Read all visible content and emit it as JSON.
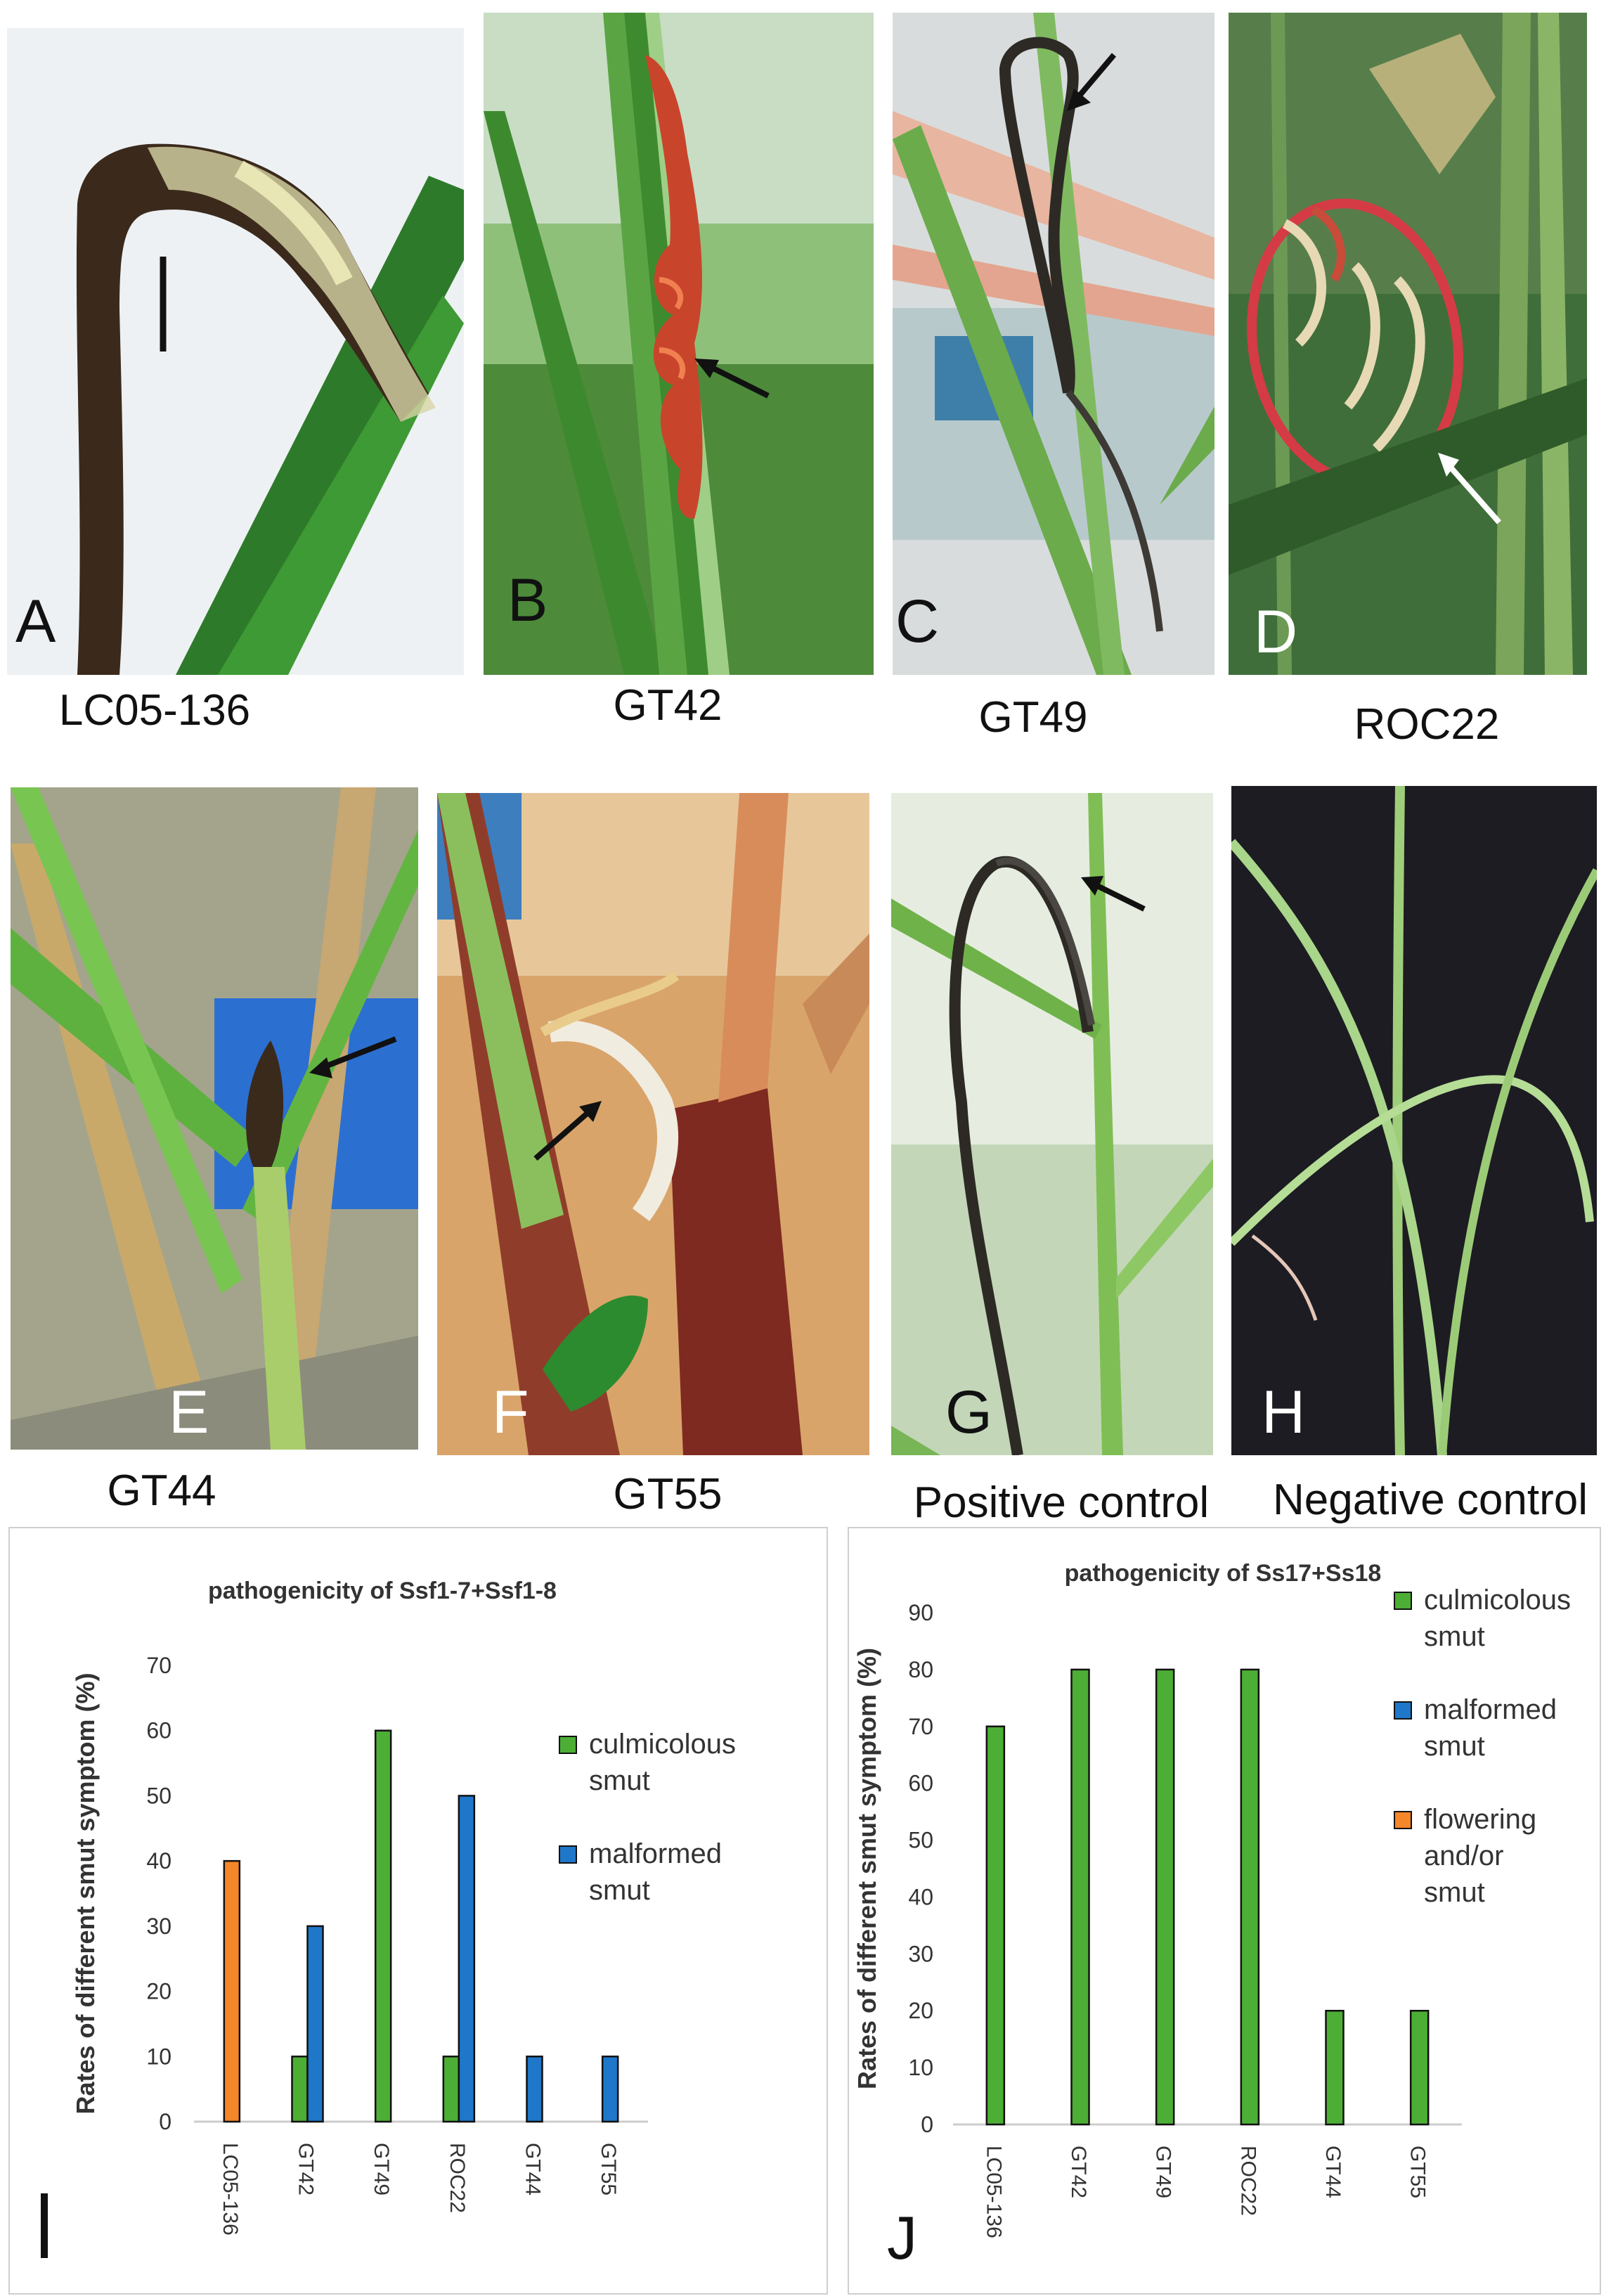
{
  "panels": [
    {
      "letter": "A",
      "caption": "LC05-136",
      "letter_color": "#111111",
      "arrow_color": "#111111"
    },
    {
      "letter": "B",
      "caption": "GT42",
      "letter_color": "#111111",
      "arrow_color": "#111111"
    },
    {
      "letter": "C",
      "caption": "GT49",
      "letter_color": "#111111",
      "arrow_color": "#111111"
    },
    {
      "letter": "D",
      "caption": "ROC22",
      "letter_color": "#ffffff",
      "arrow_color": "#ffffff"
    },
    {
      "letter": "E",
      "caption": "GT44",
      "letter_color": "#ffffff",
      "arrow_color": "#111111"
    },
    {
      "letter": "F",
      "caption": "GT55",
      "letter_color": "#ffffff",
      "arrow_color": "#111111"
    },
    {
      "letter": "G",
      "caption": "Positive control",
      "letter_color": "#111111",
      "arrow_color": "#111111"
    },
    {
      "letter": "H",
      "caption": "Negative control",
      "letter_color": "#ffffff",
      "arrow_color": ""
    }
  ],
  "chart_data": [
    {
      "panel_label": "I",
      "type": "bar",
      "title": "pathogenicity of Ssf1-7+Ssf1-8",
      "ylabel": "Rates of different smut symptom (%)",
      "xlabel": "",
      "categories": [
        "LC05-136",
        "GT42",
        "GT49",
        "ROC22",
        "GT44",
        "GT55"
      ],
      "ylim": [
        0,
        70
      ],
      "yticks": [
        0,
        10,
        20,
        30,
        40,
        50,
        60,
        70
      ],
      "grid": false,
      "legend_position": "right",
      "series": [
        {
          "name": "culmicolous smut",
          "color": "#4cae35",
          "values": [
            0,
            10,
            60,
            10,
            0,
            0
          ]
        },
        {
          "name": "malformed smut",
          "color": "#1f77c9",
          "values": [
            0,
            30,
            0,
            50,
            10,
            10
          ]
        },
        {
          "name": "flowering and/or smut",
          "color": "#f5862a",
          "values": [
            40,
            0,
            0,
            0,
            0,
            0
          ]
        }
      ],
      "legend_entries": [
        {
          "lines": [
            "culmicolous",
            "smut"
          ],
          "color": "#4cae35"
        },
        {
          "lines": [
            "malformed",
            "smut"
          ],
          "color": "#1f77c9"
        }
      ]
    },
    {
      "panel_label": "J",
      "type": "bar",
      "title": "pathogenicity of Ss17+Ss18",
      "ylabel": "Rates of different smut symptom (%)",
      "xlabel": "",
      "categories": [
        "LC05-136",
        "GT42",
        "GT49",
        "ROC22",
        "GT44",
        "GT55"
      ],
      "ylim": [
        0,
        90
      ],
      "yticks": [
        0,
        10,
        20,
        30,
        40,
        50,
        60,
        70,
        80,
        90
      ],
      "grid": false,
      "legend_position": "right",
      "series": [
        {
          "name": "culmicolous smut",
          "color": "#4cae35",
          "values": [
            70,
            80,
            80,
            80,
            20,
            20
          ]
        },
        {
          "name": "malformed smut",
          "color": "#1f77c9",
          "values": [
            0,
            0,
            0,
            0,
            0,
            0
          ]
        },
        {
          "name": "flowering and/or smut",
          "color": "#f5862a",
          "values": [
            0,
            0,
            0,
            0,
            0,
            0
          ]
        }
      ],
      "legend_entries": [
        {
          "lines": [
            "culmicolous",
            "smut"
          ],
          "color": "#4cae35"
        },
        {
          "lines": [
            "malformed",
            "smut"
          ],
          "color": "#1f77c9"
        },
        {
          "lines": [
            "flowering",
            "and/or",
            "smut"
          ],
          "color": "#f5862a"
        }
      ]
    }
  ]
}
